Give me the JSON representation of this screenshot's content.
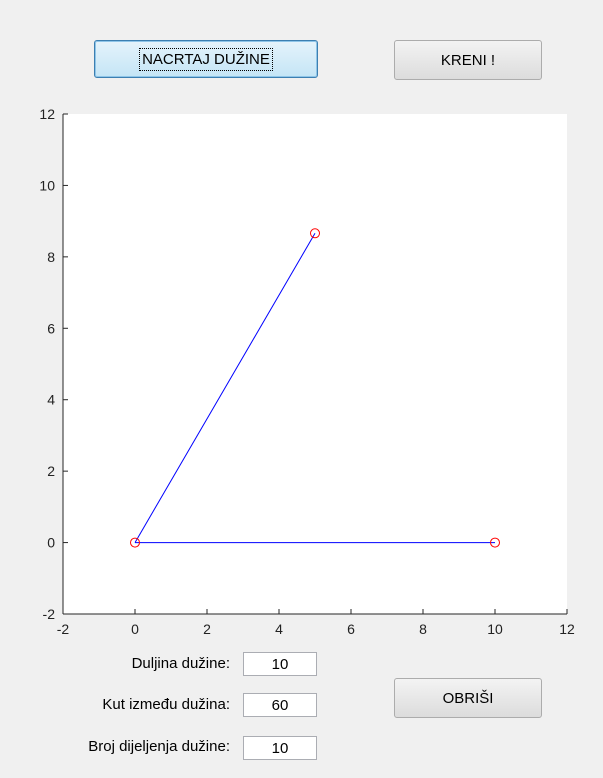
{
  "buttons": {
    "draw_label": "NACRTAJ DUŽINE",
    "go_label": "KRENI !",
    "clear_label": "OBRIŠI"
  },
  "fields": {
    "length_label": "Duljina dužine:",
    "length_value": "10",
    "angle_label": "Kut između dužina:",
    "angle_value": "60",
    "divisions_label": "Broj dijeljenja dužine:",
    "divisions_value": "10"
  },
  "chart_data": {
    "type": "line",
    "xlim": [
      -2,
      12
    ],
    "ylim": [
      -2,
      12
    ],
    "xticks": [
      -2,
      0,
      2,
      4,
      6,
      8,
      10,
      12
    ],
    "yticks": [
      -2,
      0,
      2,
      4,
      6,
      8,
      10,
      12
    ],
    "grid": false,
    "series": [
      {
        "color": "#0000ff",
        "x": [
          0,
          5
        ],
        "y": [
          0,
          8.66
        ]
      },
      {
        "color": "#0000ff",
        "x": [
          0,
          10
        ],
        "y": [
          0,
          0
        ]
      }
    ],
    "markers": {
      "color": "#ff0000",
      "style": "circle",
      "points": [
        {
          "x": 0,
          "y": 0
        },
        {
          "x": 5,
          "y": 8.66
        },
        {
          "x": 10,
          "y": 0
        }
      ]
    }
  }
}
